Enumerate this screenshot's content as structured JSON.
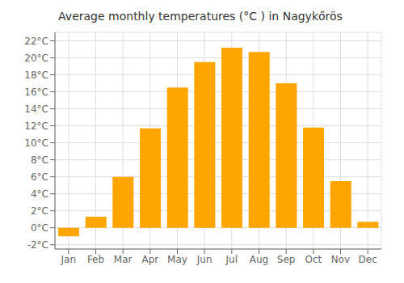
{
  "chart_data": {
    "type": "bar",
    "title": "Average monthly temperatures (°C ) in Nagykőrös",
    "categories": [
      "Jan",
      "Feb",
      "Mar",
      "Apr",
      "May",
      "Jun",
      "Jul",
      "Aug",
      "Sep",
      "Oct",
      "Nov",
      "Dec"
    ],
    "values": [
      -1.0,
      1.3,
      6.0,
      11.7,
      16.5,
      19.5,
      21.2,
      20.7,
      17.0,
      11.8,
      5.5,
      0.7
    ],
    "color": "#FFA500",
    "ylim": [
      -2.5,
      23.0
    ],
    "yticks": [
      {
        "value": -2,
        "label": "-2°C"
      },
      {
        "value": 0,
        "label": "0°C"
      },
      {
        "value": 2,
        "label": "2°C"
      },
      {
        "value": 4,
        "label": "4°C"
      },
      {
        "value": 6,
        "label": "6°C"
      },
      {
        "value": 8,
        "label": "8°C"
      },
      {
        "value": 10,
        "label": "10°C"
      },
      {
        "value": 12,
        "label": "12°C"
      },
      {
        "value": 14,
        "label": "14°C"
      },
      {
        "value": 16,
        "label": "16°C"
      },
      {
        "value": 18,
        "label": "18°C"
      },
      {
        "value": 20,
        "label": "20°C"
      },
      {
        "value": 22,
        "label": "22°C"
      }
    ],
    "grid": true
  }
}
